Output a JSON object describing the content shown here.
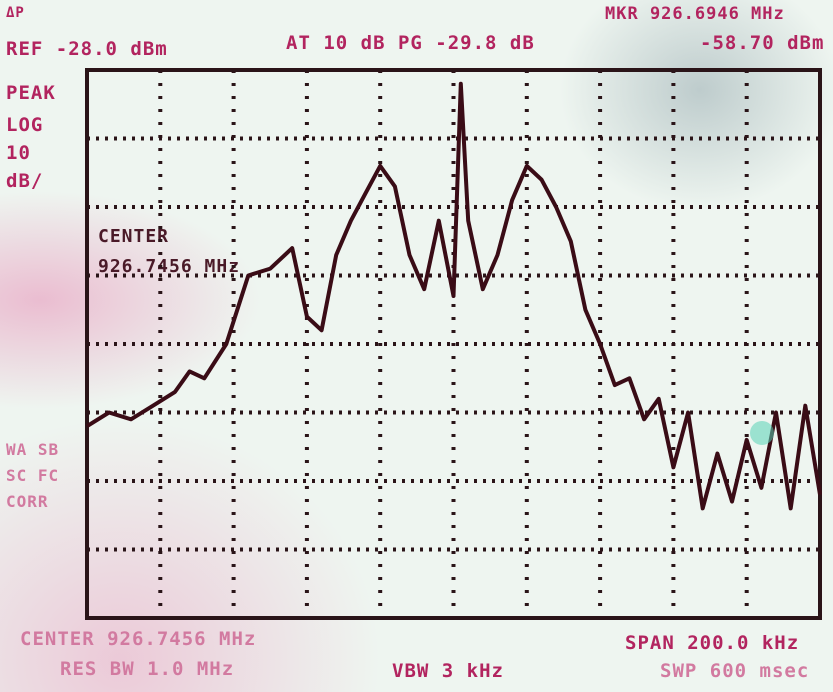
{
  "header": {
    "corner": "ΔP",
    "ref": "REF -28.0 dBm",
    "atten": "AT 10 dB PG -29.8 dB",
    "marker_freq": "MKR 926.6946 MHz",
    "marker_level": "-58.70 dBm"
  },
  "side": {
    "mode": "PEAK",
    "scale": "LOG",
    "div_value": "10",
    "div_unit": "dB/",
    "lower": [
      "WA SB",
      "SC FC",
      "CORR"
    ]
  },
  "overlay": {
    "center_label": "CENTER",
    "center_freq": "926.7456 MHz"
  },
  "footer": {
    "center": "CENTER 926.7456 MHz",
    "rbw": "RES BW 1.0 MHz",
    "vbw": "VBW 3 kHz",
    "span": "SPAN 200.0 kHz",
    "sweep": "SWP 600 msec"
  },
  "colors": {
    "text": "#b2245f",
    "grid": "#2a1418",
    "trace": "#3a0c16",
    "screen_bg": "#eef5f0"
  },
  "chart_data": {
    "type": "line",
    "ref_level_dbm": -28.0,
    "scale_db_per_div": 10,
    "center_mhz": 926.7456,
    "span_khz": 200.0,
    "ylim": [
      -108,
      -28
    ],
    "xlim": [
      926.6456,
      926.8456
    ],
    "grid": true,
    "series": [
      {
        "x": [
          926.6456,
          926.6516,
          926.6576,
          926.6636,
          926.6696,
          926.6736,
          926.6776,
          926.6836,
          926.6896,
          926.6956,
          926.7016,
          926.7056,
          926.7096,
          926.7136,
          926.7176,
          926.7216,
          926.7256,
          926.7296,
          926.7336,
          926.7376,
          926.7416,
          926.7456,
          926.7476,
          926.7496,
          926.7536,
          926.7576,
          926.7616,
          926.7656,
          926.7696,
          926.7736,
          926.7776,
          926.7816,
          926.7856,
          926.7896,
          926.7936,
          926.7976,
          926.8016,
          926.8056,
          926.8096,
          926.8136,
          926.8176,
          926.8216,
          926.8256,
          926.8296,
          926.8336,
          926.8376,
          926.8416,
          926.8456
        ],
        "y": [
          -80,
          -78,
          -79,
          -77,
          -75,
          -72,
          -73,
          -68,
          -58,
          -57,
          -54,
          -64,
          -66,
          -55,
          -50,
          -46,
          -42,
          -45,
          -55,
          -60,
          -50,
          -61,
          -30,
          -50,
          -60,
          -55,
          -47,
          -42,
          -44,
          -48,
          -53,
          -63,
          -68,
          -74,
          -73,
          -79,
          -76,
          -86,
          -78,
          -92,
          -84,
          -91,
          -82,
          -89,
          -78,
          -92,
          -77,
          -90
        ]
      }
    ]
  }
}
